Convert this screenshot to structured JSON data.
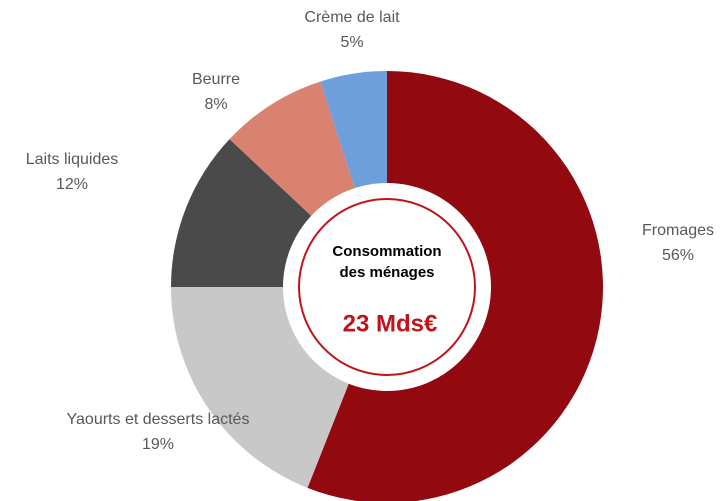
{
  "chart_data": {
    "type": "donut",
    "categories": [
      "Fromages",
      "Yaourts et desserts lactés",
      "Laits liquides",
      "Beurre",
      "Crème de lait"
    ],
    "values": [
      56,
      19,
      12,
      8,
      5
    ],
    "value_labels": [
      "56%",
      "19%",
      "12%",
      "8%",
      "5%"
    ],
    "colors": [
      "#920a0f",
      "#c8c8c8",
      "#4a4a4a",
      "#d9826f",
      "#6f9fdb"
    ],
    "center_text": [
      "Consommation",
      "des ménages"
    ],
    "center_value": "23 Mds€"
  }
}
